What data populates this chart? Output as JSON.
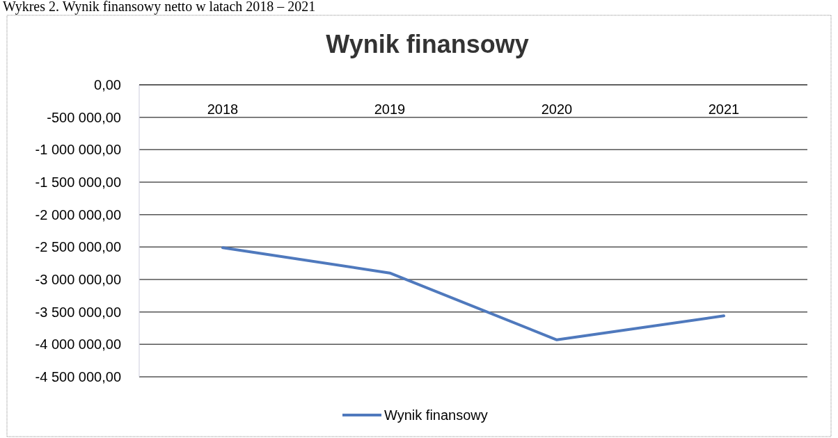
{
  "chart_data": {
    "type": "line",
    "title": "Wynik finansowy",
    "annotations": [
      "Wykres 2. Wynik finansowy netto w latach 2018 – 2021"
    ],
    "categories": [
      "2018",
      "2019",
      "2020",
      "2021"
    ],
    "series": [
      {
        "name": "Wynik finansowy",
        "color": "#4f79bd",
        "values": [
          -2510000,
          -2900000,
          -3930000,
          -3560000
        ]
      }
    ],
    "ylim": [
      -4500000,
      0
    ],
    "yticks": [
      {
        "value": 0,
        "label": "0,00"
      },
      {
        "value": -500000,
        "label": "-500 000,00"
      },
      {
        "value": -1000000,
        "label": "-1 000 000,00"
      },
      {
        "value": -1500000,
        "label": "-1 500 000,00"
      },
      {
        "value": -2000000,
        "label": "-2 000 000,00"
      },
      {
        "value": -2500000,
        "label": "-2 500 000,00"
      },
      {
        "value": -3000000,
        "label": "-3 000 000,00"
      },
      {
        "value": -3500000,
        "label": "-3 500 000,00"
      },
      {
        "value": -4000000,
        "label": "-4 000 000,00"
      },
      {
        "value": -4500000,
        "label": "-4 500 000,00"
      }
    ],
    "grid": "y",
    "legend": "bottom",
    "marker": "none",
    "line_style": "solid"
  }
}
